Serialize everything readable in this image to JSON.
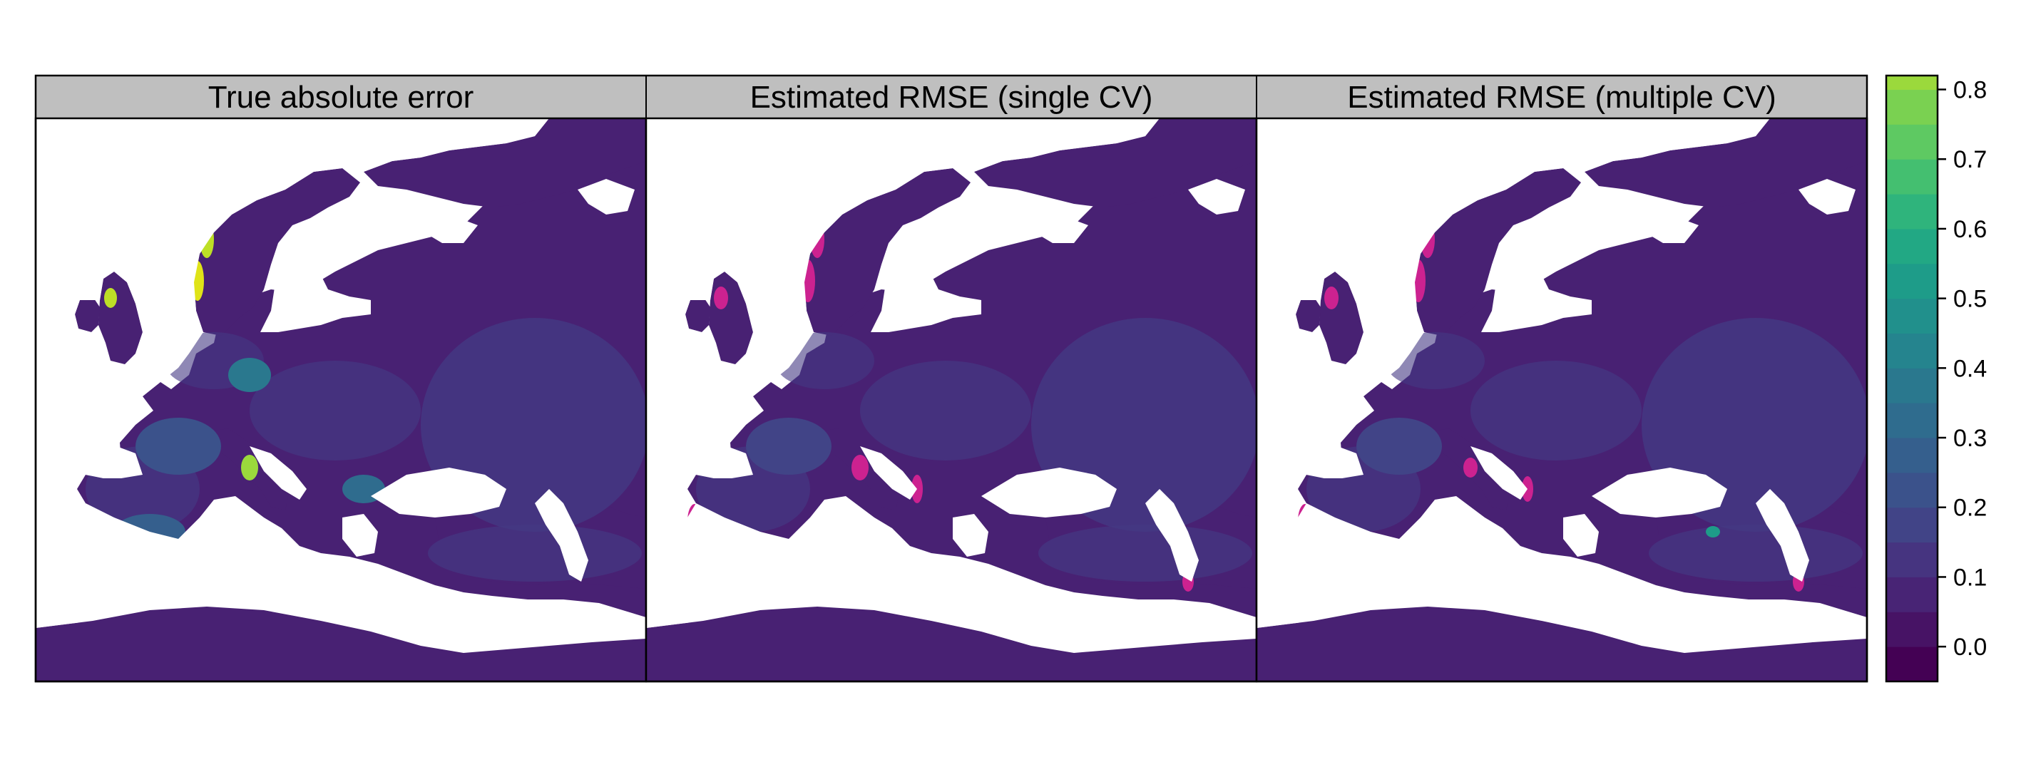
{
  "panels": [
    {
      "title": "True absolute error",
      "mode": "true"
    },
    {
      "title": "Estimated RMSE (single CV)",
      "mode": "single"
    },
    {
      "title": "Estimated RMSE (multiple CV)",
      "mode": "multi"
    }
  ],
  "colorbar": {
    "min": -0.05,
    "max": 0.82,
    "step": 0.05,
    "ticks": [
      "0.0",
      "0.1",
      "0.2",
      "0.3",
      "0.4",
      "0.5",
      "0.6",
      "0.7",
      "0.8"
    ],
    "tick_values": [
      0.0,
      0.1,
      0.2,
      0.3,
      0.4,
      0.5,
      0.6,
      0.7,
      0.8
    ],
    "colors": [
      "#440154",
      "#471365",
      "#482475",
      "#463480",
      "#414487",
      "#3B528B",
      "#355F8D",
      "#2F6C8E",
      "#2A788E",
      "#25848E",
      "#21908C",
      "#1E9C89",
      "#22A884",
      "#2FB47C",
      "#44BF70",
      "#5EC962",
      "#7AD151",
      "#9BD93C",
      "#BDDF26",
      "#DFE318",
      "#FDE725"
    ]
  },
  "colors": {
    "sea": "#ffffff",
    "strip": "#bfbfbf",
    "base": "#482173",
    "mid": "#443983",
    "magenta": "#CC2290"
  }
}
